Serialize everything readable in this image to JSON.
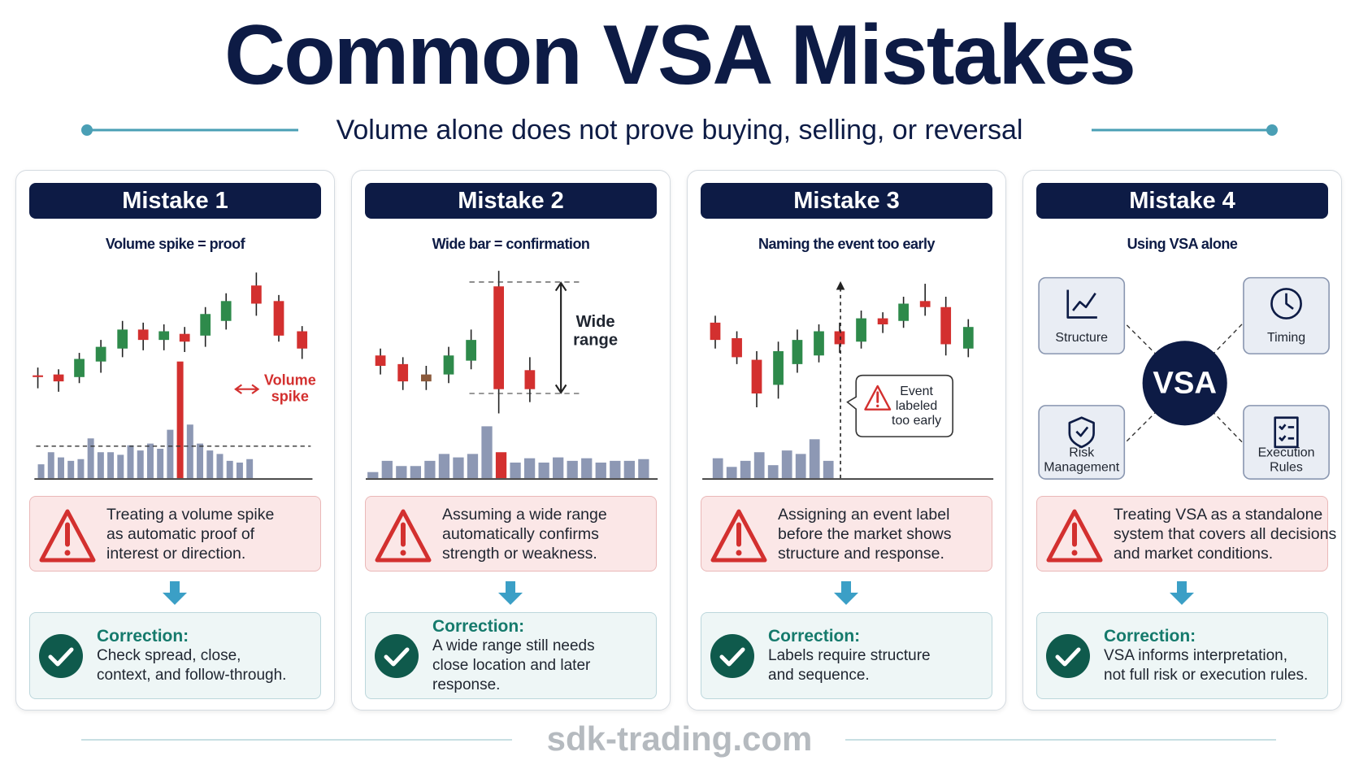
{
  "header": {
    "title": "Common VSA Mistakes",
    "subtitle": "Volume alone does not prove buying, selling, or reversal"
  },
  "panels": [
    {
      "label": "Mistake 1",
      "heading": "Volume spike = proof",
      "annotation": [
        "Volume",
        "spike"
      ],
      "warning": [
        "Treating a volume spike",
        "as automatic proof of",
        "interest or direction."
      ],
      "correction_label": "Correction:",
      "correction": [
        "Check spread, close,",
        "context, and follow-through."
      ]
    },
    {
      "label": "Mistake 2",
      "heading": "Wide bar = confirmation",
      "annotation": [
        "Wide",
        "range"
      ],
      "warning": [
        "Assuming a wide range",
        "automatically confirms",
        "strength or weakness."
      ],
      "correction_label": "Correction:",
      "correction": [
        "A wide range still needs",
        "close location and later",
        "response."
      ]
    },
    {
      "label": "Mistake 3",
      "heading": "Naming the event too early",
      "annotation": [
        "Event",
        "labeled",
        "too early"
      ],
      "warning": [
        "Assigning an event label",
        "before the market shows",
        "structure and response."
      ],
      "correction_label": "Correction:",
      "correction": [
        "Labels require structure",
        "and sequence."
      ]
    },
    {
      "label": "Mistake 4",
      "heading": "Using VSA alone",
      "center": "VSA",
      "nodes": [
        {
          "label": [
            "Structure"
          ]
        },
        {
          "label": [
            "Timing"
          ]
        },
        {
          "label": [
            "Risk",
            "Management"
          ]
        },
        {
          "label": [
            "Execution",
            "Rules"
          ]
        }
      ],
      "warning": [
        "Treating VSA as a standalone",
        "system that covers all decisions",
        "and market conditions."
      ],
      "correction_label": "Correction:",
      "correction": [
        "VSA informs interpretation,",
        "not full risk or execution rules."
      ]
    }
  ],
  "footer": "sdk-trading.com"
}
